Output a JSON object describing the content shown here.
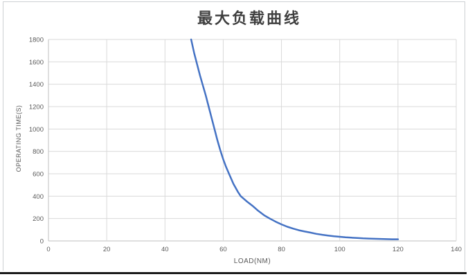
{
  "chart_data": {
    "type": "line",
    "title": "最大负载曲线",
    "xlabel": "LOAD(NM)",
    "ylabel": "OPERATING TIME(S)",
    "xlim": [
      0,
      140
    ],
    "ylim": [
      0,
      1800
    ],
    "x_ticks": [
      0,
      20,
      40,
      60,
      80,
      100,
      120,
      140
    ],
    "y_ticks": [
      0,
      200,
      400,
      600,
      800,
      1000,
      1200,
      1400,
      1600,
      1800
    ],
    "grid": true,
    "legend": "none",
    "colors": {
      "line": "#4472C4",
      "gridline": "#d9d9d9",
      "axis_line": "#bfbfbf",
      "tick_text": "#595959",
      "title_text": "#3f3f3f",
      "figure_border": "#cdd0d3",
      "bottom_rule": "#1b1b1b"
    },
    "series": [
      {
        "points": [
          [
            49,
            1800
          ],
          [
            50,
            1680
          ],
          [
            51,
            1580
          ],
          [
            52,
            1480
          ],
          [
            53,
            1390
          ],
          [
            54,
            1300
          ],
          [
            55,
            1200
          ],
          [
            56,
            1100
          ],
          [
            57,
            1000
          ],
          [
            58,
            900
          ],
          [
            59,
            810
          ],
          [
            60,
            730
          ],
          [
            61,
            660
          ],
          [
            62,
            600
          ],
          [
            63.5,
            510
          ],
          [
            65,
            440
          ],
          [
            66,
            400
          ],
          [
            68,
            355
          ],
          [
            70,
            315
          ],
          [
            72,
            270
          ],
          [
            74,
            230
          ],
          [
            76,
            200
          ],
          [
            78,
            172
          ],
          [
            80,
            148
          ],
          [
            82,
            127
          ],
          [
            84,
            110
          ],
          [
            86,
            95
          ],
          [
            88,
            84
          ],
          [
            90,
            74
          ],
          [
            92,
            63
          ],
          [
            94,
            55
          ],
          [
            96,
            48
          ],
          [
            98,
            42
          ],
          [
            100,
            37
          ],
          [
            102,
            32
          ],
          [
            104,
            29
          ],
          [
            106,
            26
          ],
          [
            108,
            23
          ],
          [
            110,
            21
          ],
          [
            112,
            19
          ],
          [
            114,
            18
          ],
          [
            116,
            16
          ],
          [
            118,
            15
          ],
          [
            120,
            15
          ]
        ]
      }
    ]
  }
}
